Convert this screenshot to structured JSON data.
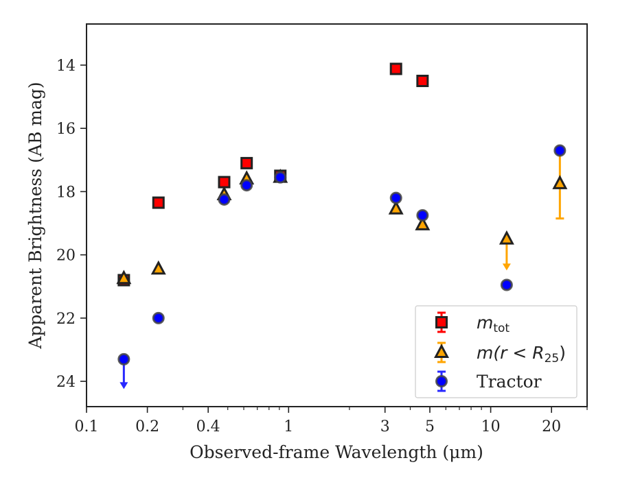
{
  "chart_data": {
    "type": "scatter",
    "title": "",
    "xlabel": "Observed-frame Wavelength (μm)",
    "ylabel": "Apparent Brightness (AB mag)",
    "xscale": "log",
    "xlim": [
      0.1,
      30
    ],
    "ylim": [
      24.8,
      12.7
    ],
    "y_inverted": true,
    "x_ticks": [
      0.1,
      0.2,
      0.4,
      1,
      3,
      5,
      10,
      20
    ],
    "x_tick_labels": [
      "0.1",
      "0.2",
      "0.4",
      "1",
      "3",
      "5",
      "10",
      "20"
    ],
    "y_ticks": [
      14,
      16,
      18,
      20,
      22,
      24
    ],
    "y_tick_labels": [
      "14",
      "16",
      "18",
      "20",
      "22",
      "24"
    ],
    "grid": false,
    "legend_position": "bottom-right",
    "series": [
      {
        "name_text": "m",
        "name_sub": "tot",
        "marker": "square",
        "color": "#ff0000",
        "points": [
          {
            "x": 0.153,
            "y": 20.8
          },
          {
            "x": 0.227,
            "y": 18.35
          },
          {
            "x": 0.48,
            "y": 17.7
          },
          {
            "x": 0.62,
            "y": 17.1
          },
          {
            "x": 0.91,
            "y": 17.5
          },
          {
            "x": 3.4,
            "y": 14.12
          },
          {
            "x": 4.6,
            "y": 14.5
          }
        ]
      },
      {
        "name_text": "m(r < R",
        "name_sub": "25",
        "name_after": ")",
        "marker": "triangle",
        "color": "#ffa500",
        "points": [
          {
            "x": 0.153,
            "y": 20.75
          },
          {
            "x": 0.227,
            "y": 20.45
          },
          {
            "x": 0.48,
            "y": 18.1
          },
          {
            "x": 0.62,
            "y": 17.6
          },
          {
            "x": 0.91,
            "y": 17.55
          },
          {
            "x": 3.4,
            "y": 18.55
          },
          {
            "x": 4.6,
            "y": 19.05
          },
          {
            "x": 12,
            "y": 19.5,
            "upper_limit_to": 20.45
          },
          {
            "x": 22,
            "y": 17.75,
            "err_low": 16.75,
            "err_high": 18.85
          }
        ]
      },
      {
        "name_text": "Tractor",
        "marker": "circle",
        "color": "#0000ff",
        "points": [
          {
            "x": 0.153,
            "y": 23.3,
            "upper_limit_to": 24.2
          },
          {
            "x": 0.227,
            "y": 22.0
          },
          {
            "x": 0.48,
            "y": 18.25
          },
          {
            "x": 0.62,
            "y": 17.8
          },
          {
            "x": 0.91,
            "y": 17.55
          },
          {
            "x": 3.4,
            "y": 18.2
          },
          {
            "x": 4.6,
            "y": 18.75
          },
          {
            "x": 12,
            "y": 20.95
          },
          {
            "x": 22,
            "y": 16.7
          }
        ]
      }
    ]
  }
}
